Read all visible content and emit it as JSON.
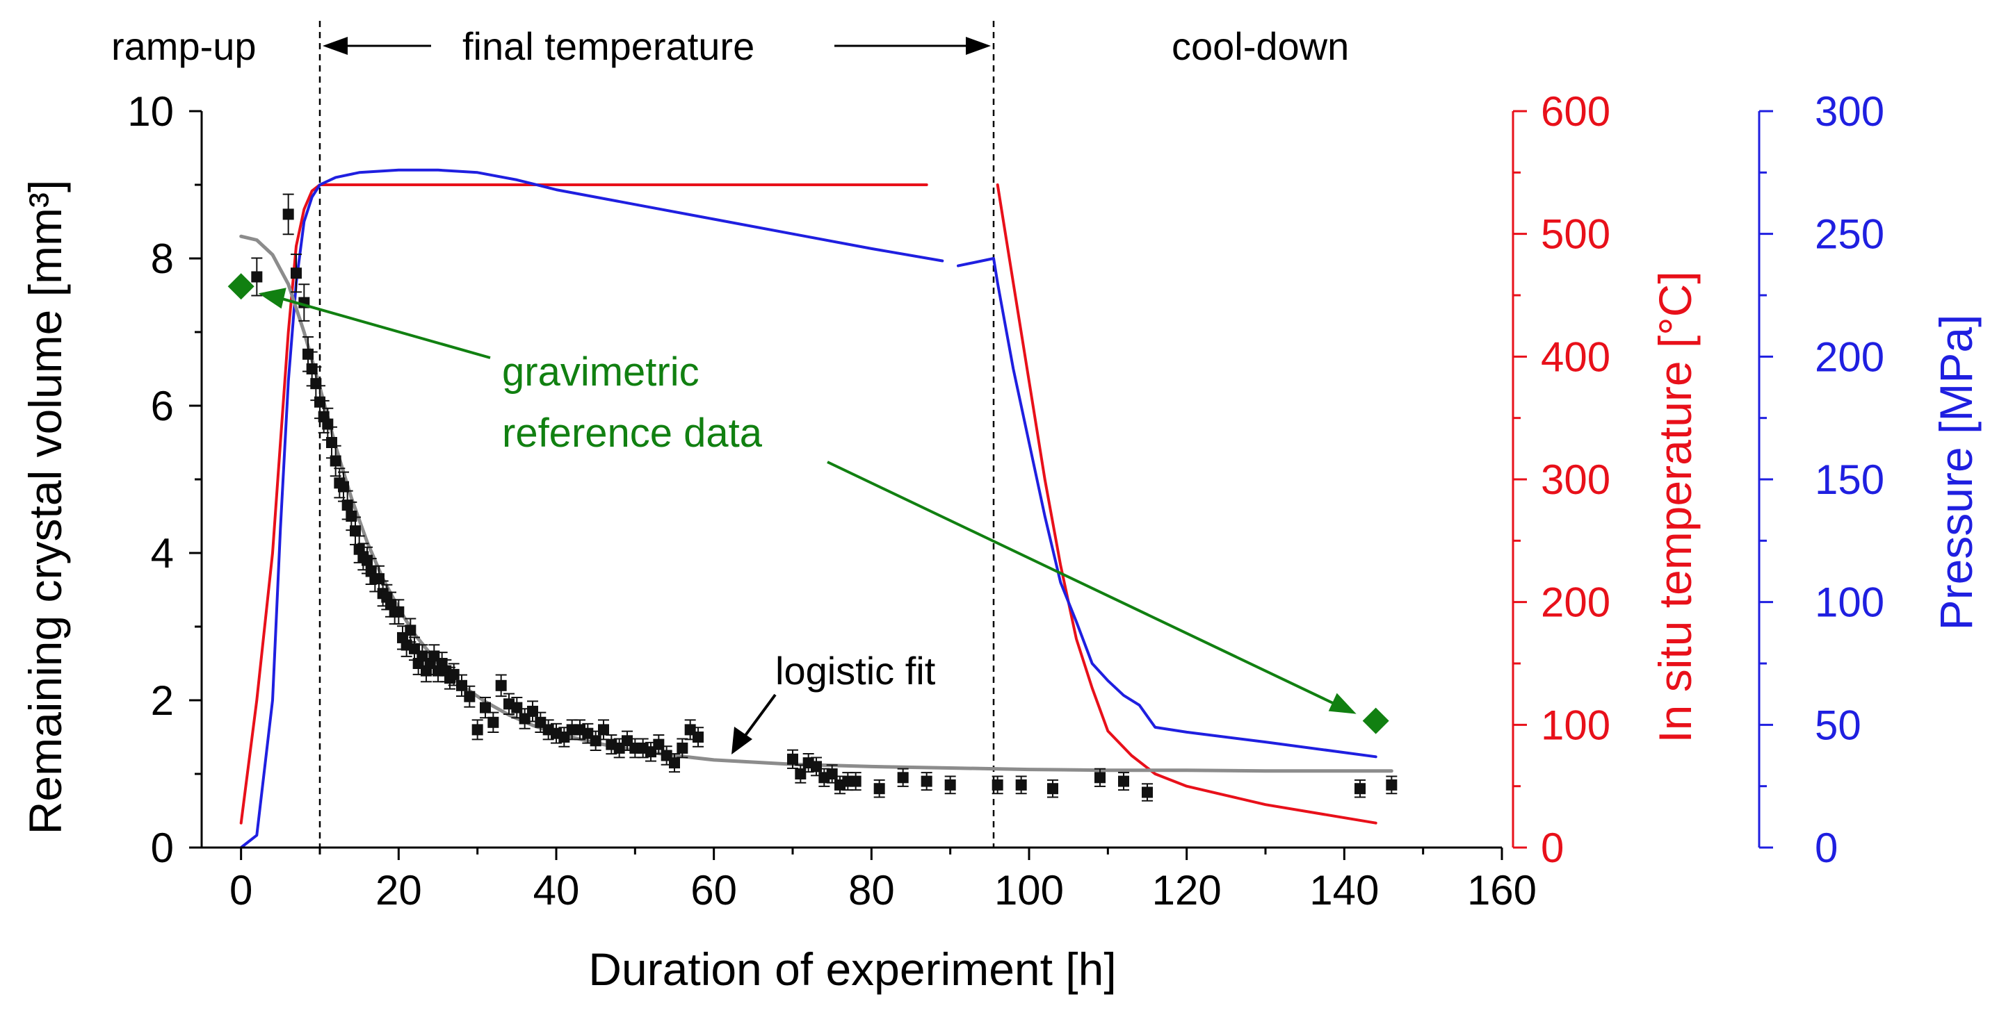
{
  "colors": {
    "axis": "#000000",
    "volume_points": "#111111",
    "fit": "#8c8c8c",
    "temperature": "#e8101a",
    "pressure": "#1f1fe0",
    "reference": "#118011"
  },
  "annotations": {
    "phase_rampup": "ramp-up",
    "phase_final": "final temperature",
    "phase_cooldown": "cool-down",
    "gravimetric_line1": "gravimetric",
    "gravimetric_line2": "reference data",
    "logistic_fit": "logistic fit"
  },
  "chart_data": {
    "type": "scatter",
    "xlabel": "Duration of experiment [h]",
    "ylabel": "Remaining crystal volume [mm³]",
    "y2label": "In situ temperature [°C]",
    "y3label": "Pressure [MPa]",
    "xlim": [
      -5,
      160
    ],
    "ylim": [
      0,
      10
    ],
    "y2lim": [
      0,
      600
    ],
    "y3lim": [
      0,
      300
    ],
    "xticks": [
      "0",
      "20",
      "40",
      "60",
      "80",
      "100",
      "120",
      "140",
      "160"
    ],
    "yticks": [
      "0",
      "2",
      "4",
      "6",
      "8",
      "10"
    ],
    "y2ticks": [
      "0",
      "100",
      "200",
      "300",
      "400",
      "500",
      "600"
    ],
    "y3ticks": [
      "0",
      "50",
      "100",
      "150",
      "200",
      "250",
      "300"
    ],
    "phase_boundaries": [
      10,
      95.5
    ],
    "series": [
      {
        "axis": "y",
        "kind": "points",
        "x": [
          2,
          6,
          7,
          8,
          8.5,
          9,
          9.5,
          10,
          10.5,
          11,
          11.5,
          12,
          12.5,
          13,
          13.5,
          14,
          14.5,
          15,
          15.5,
          16,
          16.5,
          17,
          17.5,
          18,
          18.5,
          19,
          19.5,
          20,
          20.5,
          21,
          21.5,
          22,
          22.5,
          23,
          23.5,
          24,
          24.5,
          25,
          25.5,
          26,
          26.5,
          27,
          28,
          29,
          30,
          31,
          32,
          33,
          34,
          35,
          36,
          37,
          38,
          39,
          40,
          41,
          42,
          43,
          44,
          45,
          46,
          47,
          48,
          49,
          50,
          51,
          52,
          53,
          54,
          55,
          56,
          57,
          58,
          70,
          71,
          72,
          73,
          74,
          75,
          76,
          77,
          78,
          81,
          84,
          87,
          90,
          96,
          99,
          103,
          109,
          112,
          115,
          142,
          146
        ],
        "values": [
          7.75,
          8.6,
          7.8,
          7.4,
          6.7,
          6.5,
          6.3,
          6.05,
          5.85,
          5.75,
          5.5,
          5.25,
          4.95,
          4.9,
          4.65,
          4.5,
          4.3,
          4.05,
          3.95,
          3.9,
          3.75,
          3.65,
          3.65,
          3.45,
          3.4,
          3.3,
          3.2,
          3.2,
          2.85,
          2.75,
          2.95,
          2.7,
          2.5,
          2.6,
          2.4,
          2.5,
          2.6,
          2.4,
          2.5,
          2.4,
          2.3,
          2.35,
          2.2,
          2.05,
          1.6,
          1.9,
          1.7,
          2.2,
          1.95,
          1.9,
          1.75,
          1.85,
          1.7,
          1.6,
          1.55,
          1.5,
          1.6,
          1.6,
          1.55,
          1.45,
          1.6,
          1.4,
          1.35,
          1.45,
          1.35,
          1.35,
          1.3,
          1.4,
          1.25,
          1.15,
          1.35,
          1.6,
          1.5,
          1.2,
          1.0,
          1.15,
          1.1,
          0.95,
          1.0,
          0.85,
          0.9,
          0.9,
          0.8,
          0.95,
          0.9,
          0.85,
          0.85,
          0.85,
          0.8,
          0.95,
          0.9,
          0.75,
          0.8,
          0.85
        ]
      },
      {
        "axis": "y",
        "kind": "fit",
        "x": [
          0,
          2,
          4,
          6,
          8,
          10,
          12,
          14,
          16,
          18,
          20,
          22,
          25,
          28,
          31,
          34,
          37,
          40,
          45,
          50,
          55,
          60,
          70,
          80,
          90,
          100,
          110,
          120,
          130,
          140,
          146
        ],
        "values": [
          8.3,
          8.25,
          8.05,
          7.65,
          7.0,
          6.25,
          5.45,
          4.75,
          4.15,
          3.65,
          3.25,
          2.9,
          2.5,
          2.2,
          1.98,
          1.8,
          1.66,
          1.55,
          1.42,
          1.32,
          1.25,
          1.19,
          1.13,
          1.1,
          1.08,
          1.06,
          1.05,
          1.05,
          1.04,
          1.04,
          1.04
        ]
      },
      {
        "axis": "y2",
        "kind": "line",
        "x": [
          0,
          2,
          4,
          5,
          6,
          7,
          8,
          9,
          10,
          12,
          20,
          30,
          50,
          70,
          87
        ],
        "values": [
          20,
          120,
          240,
          330,
          420,
          490,
          520,
          535,
          540,
          540,
          540,
          540,
          540,
          540,
          540
        ]
      },
      {
        "axis": "y2",
        "kind": "line",
        "x": [
          96,
          98,
          100,
          102,
          104,
          106,
          108,
          110,
          113,
          116,
          120,
          130,
          144
        ],
        "values": [
          540,
          460,
          380,
          300,
          230,
          170,
          130,
          95,
          75,
          60,
          50,
          35,
          20
        ]
      },
      {
        "axis": "y3",
        "kind": "line",
        "x": [
          0,
          2,
          4,
          5,
          6,
          7,
          8,
          9,
          10,
          12,
          15,
          20,
          25,
          30,
          35,
          40,
          50,
          60,
          70,
          80,
          89
        ],
        "values": [
          0,
          5,
          60,
          130,
          190,
          230,
          255,
          265,
          270,
          273,
          275,
          276,
          276,
          275,
          272,
          268,
          262,
          256,
          250,
          244,
          239
        ]
      },
      {
        "axis": "y3",
        "kind": "line",
        "x": [
          91,
          95.5,
          96,
          98,
          100,
          102,
          104,
          106,
          108,
          110,
          112,
          114,
          116,
          120,
          130,
          144
        ],
        "values": [
          237,
          240,
          230,
          195,
          165,
          135,
          108,
          92,
          75,
          68,
          62,
          58,
          49,
          47,
          43,
          37
        ]
      },
      {
        "axis": "y",
        "kind": "reference",
        "x": [
          0,
          144
        ],
        "values": [
          7.62,
          1.72
        ]
      }
    ]
  }
}
